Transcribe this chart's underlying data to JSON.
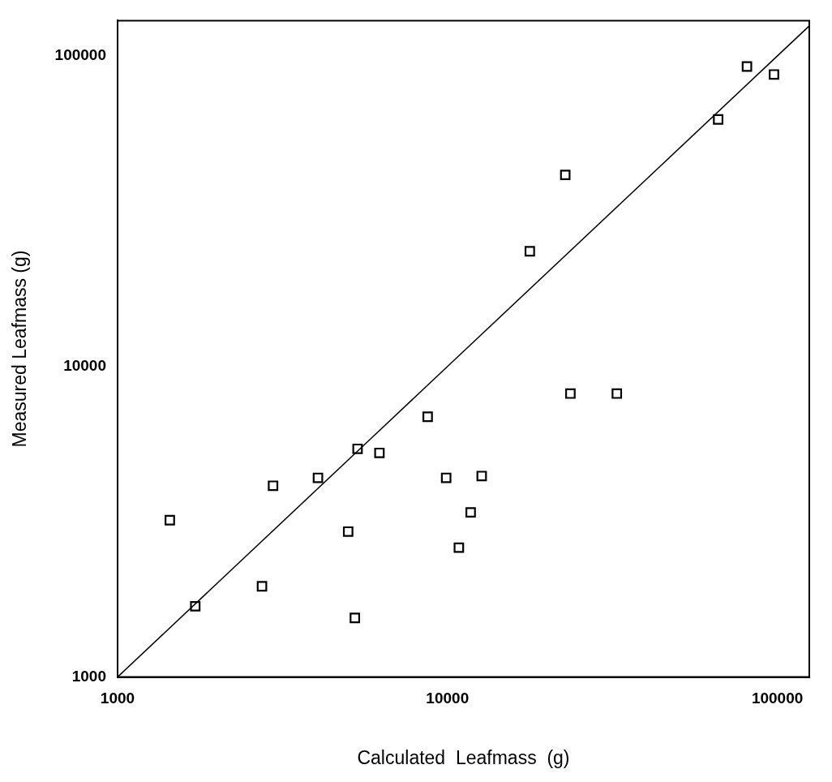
{
  "chart_data": {
    "type": "scatter",
    "xlabel": "Calculated  Leafmass  (g)",
    "ylabel": "Measured Leafmass (g)",
    "log": "xy",
    "grid": false,
    "legend": false,
    "marker": "square",
    "xlim": [
      1000,
      125000
    ],
    "ylim": [
      1000,
      130000
    ],
    "xticks": [
      1000,
      10000,
      100000
    ],
    "yticks": [
      1000,
      10000,
      100000
    ],
    "series": [
      {
        "color": "#000000",
        "x": [
          1440,
          1720,
          2740,
          2960,
          4050,
          5000,
          5240,
          5340,
          6220,
          8710,
          9910,
          10830,
          11760,
          12700,
          17770,
          22760,
          23590,
          32620,
          66170,
          80900,
          97700
        ],
        "values": [
          3200,
          1690,
          1960,
          4130,
          4380,
          2940,
          1550,
          5430,
          5270,
          6890,
          4380,
          2610,
          3390,
          4440,
          23500,
          41400,
          8180,
          8180,
          62470,
          92500,
          87200
        ]
      },
      {
        "type": "line",
        "color": "#000000",
        "marker": "none",
        "line_style": "solid",
        "x": [
          1000,
          125000
        ],
        "values": [
          1000,
          125000
        ]
      }
    ]
  }
}
